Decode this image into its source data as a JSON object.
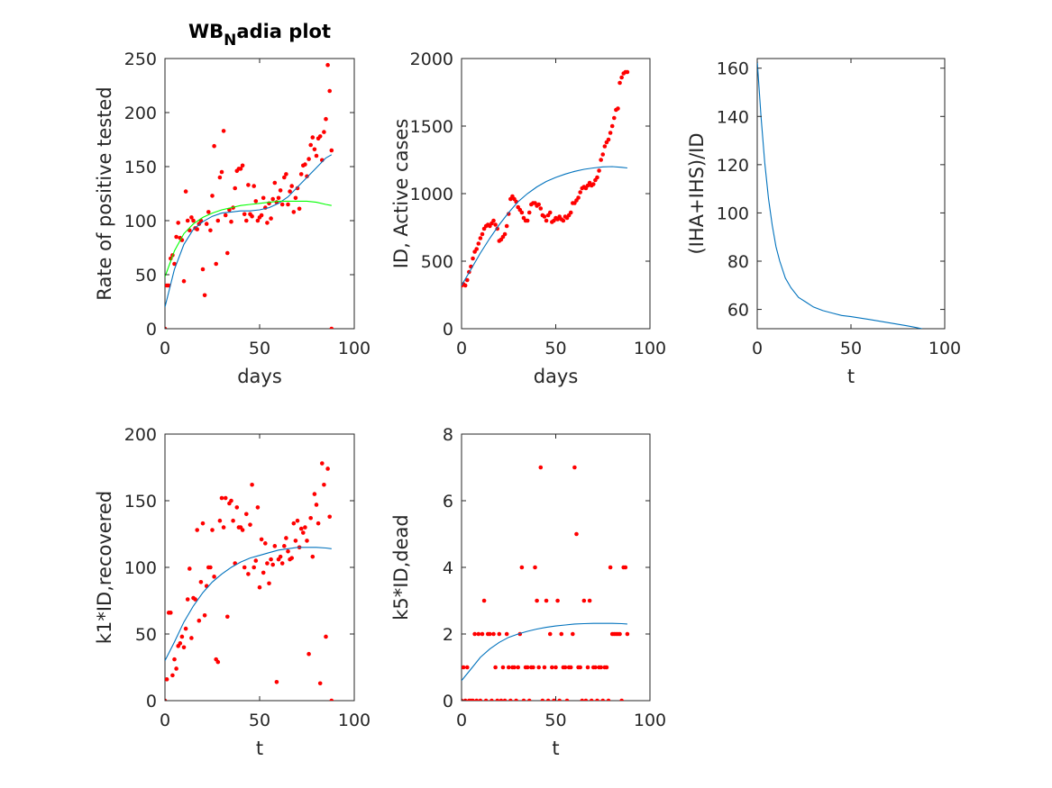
{
  "figure": {
    "background": "#ffffff",
    "colors": {
      "data_points": "#ff0000",
      "fit_line": "#0072bd",
      "alt_fit_line": "#00ff00",
      "axes": "#262626"
    }
  },
  "chart_data": [
    {
      "id": "p1",
      "type": "scatter",
      "title": "WB",
      "title_subscript": "N",
      "title_suffix": "adia plot",
      "xlabel": "days",
      "ylabel": "Rate of positive tested",
      "xlim": [
        0,
        100
      ],
      "ylim": [
        0,
        250
      ],
      "xticks": [
        0,
        50,
        100
      ],
      "yticks": [
        0,
        50,
        100,
        150,
        200,
        250
      ],
      "grid": false,
      "series": [
        {
          "kind": "points",
          "color": "#ff0000",
          "x": [
            0,
            1,
            2,
            3,
            4,
            5,
            6,
            7,
            8,
            9,
            10,
            11,
            12,
            13,
            14,
            15,
            16,
            17,
            18,
            19,
            20,
            21,
            22,
            23,
            24,
            25,
            26,
            27,
            28,
            29,
            30,
            31,
            32,
            33,
            34,
            35,
            36,
            37,
            38,
            39,
            40,
            41,
            42,
            43,
            44,
            45,
            46,
            47,
            48,
            49,
            50,
            51,
            52,
            53,
            54,
            55,
            56,
            57,
            58,
            59,
            60,
            61,
            62,
            63,
            64,
            65,
            66,
            67,
            68,
            69,
            70,
            71,
            72,
            73,
            74,
            75,
            76,
            77,
            78,
            79,
            80,
            81,
            82,
            83,
            84,
            85,
            86,
            87,
            88
          ],
          "y": [
            0,
            40,
            40,
            65,
            68,
            60,
            85,
            98,
            84,
            82,
            44,
            127,
            100,
            91,
            103,
            100,
            93,
            92,
            97,
            100,
            55,
            31,
            97,
            108,
            91,
            123,
            169,
            60,
            100,
            140,
            145,
            183,
            105,
            70,
            110,
            99,
            112,
            130,
            146,
            148,
            148,
            151,
            106,
            100,
            133,
            106,
            104,
            132,
            118,
            100,
            103,
            105,
            121,
            112,
            98,
            116,
            102,
            120,
            135,
            117,
            121,
            128,
            115,
            140,
            143,
            115,
            127,
            132,
            108,
            121,
            130,
            111,
            143,
            151,
            152,
            141,
            157,
            170,
            177,
            166,
            160,
            176,
            178,
            156,
            182,
            194,
            244,
            220,
            165
          ],
          "y_end": 0
        },
        {
          "kind": "line",
          "color": "#0072bd",
          "x": [
            0,
            5,
            10,
            15,
            20,
            25,
            30,
            35,
            40,
            45,
            50,
            55,
            60,
            65,
            70,
            75,
            80,
            85,
            88
          ],
          "y": [
            20,
            55,
            78,
            92,
            99,
            104,
            107,
            108,
            109,
            109,
            110,
            112,
            116,
            122,
            131,
            140,
            149,
            158,
            161
          ]
        },
        {
          "kind": "line",
          "color": "#00ff00",
          "x": [
            0,
            5,
            10,
            15,
            20,
            25,
            30,
            35,
            40,
            45,
            50,
            55,
            60,
            65,
            70,
            75,
            80,
            85,
            88
          ],
          "y": [
            48,
            72,
            88,
            97,
            103,
            107,
            110,
            112,
            114,
            115,
            116,
            117,
            118,
            118,
            118,
            118,
            117,
            115,
            114
          ]
        }
      ]
    },
    {
      "id": "p2",
      "type": "scatter",
      "title": "",
      "xlabel": "days",
      "ylabel": "ID, Active cases",
      "xlim": [
        0,
        100
      ],
      "ylim": [
        0,
        2000
      ],
      "xticks": [
        0,
        50,
        100
      ],
      "yticks": [
        0,
        500,
        1000,
        1500,
        2000
      ],
      "grid": false,
      "series": [
        {
          "kind": "points",
          "color": "#ff0000",
          "x": [
            0,
            1,
            2,
            3,
            4,
            5,
            6,
            7,
            8,
            9,
            10,
            11,
            12,
            13,
            14,
            15,
            16,
            17,
            18,
            19,
            20,
            21,
            22,
            23,
            24,
            25,
            26,
            27,
            28,
            29,
            30,
            31,
            32,
            33,
            34,
            35,
            36,
            37,
            38,
            39,
            40,
            41,
            42,
            43,
            44,
            45,
            46,
            47,
            48,
            49,
            50,
            51,
            52,
            53,
            54,
            55,
            56,
            57,
            58,
            59,
            60,
            61,
            62,
            63,
            64,
            65,
            66,
            67,
            68,
            69,
            70,
            71,
            72,
            73,
            74,
            75,
            76,
            77,
            78,
            79,
            80,
            81,
            82,
            83,
            84,
            85,
            86,
            87,
            88
          ],
          "y": [
            320,
            330,
            320,
            360,
            420,
            460,
            520,
            570,
            590,
            630,
            670,
            700,
            740,
            760,
            770,
            760,
            780,
            800,
            770,
            740,
            650,
            660,
            680,
            700,
            760,
            850,
            960,
            980,
            960,
            940,
            900,
            880,
            860,
            820,
            800,
            800,
            860,
            920,
            930,
            930,
            910,
            920,
            890,
            840,
            830,
            800,
            840,
            860,
            790,
            800,
            820,
            810,
            830,
            810,
            800,
            830,
            820,
            840,
            860,
            930,
            930,
            950,
            970,
            1010,
            1040,
            1050,
            1040,
            1060,
            1080,
            1060,
            1070,
            1100,
            1120,
            1170,
            1250,
            1290,
            1350,
            1380,
            1400,
            1450,
            1500,
            1560,
            1620,
            1630,
            1820,
            1860,
            1890,
            1900,
            1900
          ]
        },
        {
          "kind": "line",
          "color": "#0072bd",
          "x": [
            0,
            5,
            10,
            15,
            20,
            25,
            30,
            35,
            40,
            45,
            50,
            55,
            60,
            65,
            70,
            75,
            80,
            85,
            88
          ],
          "y": [
            320,
            440,
            560,
            670,
            770,
            860,
            940,
            1000,
            1050,
            1090,
            1120,
            1145,
            1165,
            1180,
            1190,
            1198,
            1200,
            1195,
            1190
          ]
        }
      ]
    },
    {
      "id": "p3",
      "type": "line",
      "title": "",
      "xlabel": "t",
      "ylabel": "(IHA+IHS)/ID",
      "xlim": [
        0,
        100
      ],
      "ylim": [
        52,
        164
      ],
      "xticks": [
        0,
        50,
        100
      ],
      "yticks": [
        60,
        80,
        100,
        120,
        140,
        160
      ],
      "grid": false,
      "series": [
        {
          "kind": "line",
          "color": "#0072bd",
          "x": [
            0,
            2,
            4,
            6,
            8,
            10,
            12,
            15,
            18,
            22,
            26,
            30,
            35,
            40,
            45,
            50,
            60,
            70,
            80,
            88
          ],
          "y": [
            163,
            140,
            121,
            106,
            95,
            86,
            80,
            73,
            69,
            65,
            63,
            61,
            59.5,
            58.5,
            57.5,
            57,
            55.8,
            54.5,
            53.2,
            52
          ]
        }
      ]
    },
    {
      "id": "p4",
      "type": "scatter",
      "title": "",
      "xlabel": "t",
      "ylabel": "k1*ID,recovered",
      "xlim": [
        0,
        100
      ],
      "ylim": [
        0,
        200
      ],
      "xticks": [
        0,
        50,
        100
      ],
      "yticks": [
        0,
        50,
        100,
        150,
        200
      ],
      "grid": false,
      "series": [
        {
          "kind": "points",
          "color": "#ff0000",
          "x": [
            0,
            1,
            2,
            3,
            4,
            5,
            6,
            7,
            8,
            9,
            10,
            11,
            12,
            13,
            14,
            15,
            16,
            17,
            18,
            19,
            20,
            21,
            22,
            23,
            24,
            25,
            26,
            27,
            28,
            29,
            30,
            31,
            32,
            33,
            34,
            35,
            36,
            37,
            38,
            39,
            40,
            41,
            42,
            43,
            44,
            45,
            46,
            47,
            48,
            49,
            50,
            51,
            52,
            53,
            54,
            55,
            56,
            57,
            58,
            59,
            60,
            61,
            62,
            63,
            64,
            65,
            66,
            67,
            68,
            69,
            70,
            71,
            72,
            73,
            74,
            75,
            76,
            77,
            78,
            79,
            80,
            81,
            82,
            83,
            84,
            85,
            86,
            87,
            88
          ],
          "y": [
            0,
            16,
            66,
            66,
            19,
            31,
            24,
            41,
            43,
            48,
            40,
            54,
            76,
            99,
            47,
            77,
            76,
            128,
            60,
            89,
            133,
            64,
            86,
            100,
            100,
            128,
            93,
            31,
            29,
            135,
            152,
            130,
            152,
            63,
            148,
            150,
            135,
            103,
            145,
            130,
            130,
            128,
            100,
            140,
            95,
            132,
            162,
            100,
            105,
            145,
            85,
            121,
            96,
            118,
            103,
            88,
            106,
            102,
            116,
            14,
            106,
            108,
            103,
            116,
            122,
            112,
            106,
            107,
            133,
            120,
            135,
            115,
            129,
            126,
            130,
            120,
            35,
            137,
            108,
            155,
            147,
            133,
            13,
            178,
            162,
            48,
            174,
            138,
            0
          ]
        },
        {
          "kind": "line",
          "color": "#0072bd",
          "x": [
            0,
            5,
            10,
            15,
            20,
            25,
            30,
            35,
            40,
            45,
            50,
            55,
            60,
            65,
            70,
            75,
            80,
            85,
            88
          ],
          "y": [
            30,
            44,
            59,
            71,
            81,
            89,
            95,
            100,
            104,
            107,
            109,
            111,
            113,
            114,
            115,
            115,
            115,
            114.5,
            114
          ]
        }
      ]
    },
    {
      "id": "p5",
      "type": "scatter",
      "title": "",
      "xlabel": "t",
      "ylabel": "k5*ID,dead",
      "xlim": [
        0,
        100
      ],
      "ylim": [
        0,
        8
      ],
      "xticks": [
        0,
        50,
        100
      ],
      "yticks": [
        0,
        2,
        4,
        6,
        8
      ],
      "grid": false,
      "series": [
        {
          "kind": "points",
          "color": "#ff0000",
          "x": [
            0,
            1,
            2,
            3,
            4,
            5,
            6,
            7,
            8,
            9,
            10,
            11,
            12,
            13,
            14,
            15,
            16,
            17,
            18,
            19,
            20,
            21,
            22,
            23,
            24,
            25,
            26,
            27,
            28,
            29,
            30,
            31,
            32,
            33,
            34,
            35,
            36,
            37,
            38,
            39,
            40,
            41,
            42,
            43,
            44,
            45,
            46,
            47,
            48,
            49,
            50,
            51,
            52,
            53,
            54,
            55,
            56,
            57,
            58,
            59,
            60,
            61,
            62,
            63,
            64,
            65,
            66,
            67,
            68,
            69,
            70,
            71,
            72,
            73,
            74,
            75,
            76,
            77,
            78,
            79,
            80,
            81,
            82,
            83,
            84,
            85,
            86,
            87,
            88
          ],
          "y": [
            0,
            1,
            0,
            1,
            0,
            0,
            0,
            2,
            0,
            2,
            0,
            2,
            3,
            0,
            2,
            2,
            0,
            2,
            1,
            0,
            2,
            0,
            1,
            0,
            2,
            1,
            0,
            1,
            1,
            0,
            1,
            2,
            4,
            0,
            1,
            1,
            0,
            1,
            1,
            4,
            3,
            1,
            7,
            0,
            1,
            3,
            0,
            2,
            1,
            0,
            1,
            3,
            0,
            2,
            1,
            1,
            0,
            1,
            1,
            2,
            7,
            5,
            1,
            1,
            0,
            3,
            0,
            1,
            3,
            0,
            1,
            1,
            0,
            1,
            1,
            0,
            1,
            1,
            0,
            4,
            2,
            2,
            2,
            2,
            2,
            0,
            4,
            4,
            2
          ]
        },
        {
          "kind": "line",
          "color": "#0072bd",
          "x": [
            0,
            5,
            10,
            15,
            20,
            25,
            30,
            35,
            40,
            45,
            50,
            55,
            60,
            65,
            70,
            75,
            80,
            85,
            88
          ],
          "y": [
            0.6,
            0.95,
            1.3,
            1.55,
            1.75,
            1.9,
            2.0,
            2.08,
            2.15,
            2.2,
            2.24,
            2.27,
            2.3,
            2.31,
            2.32,
            2.32,
            2.32,
            2.31,
            2.3
          ]
        }
      ]
    }
  ]
}
